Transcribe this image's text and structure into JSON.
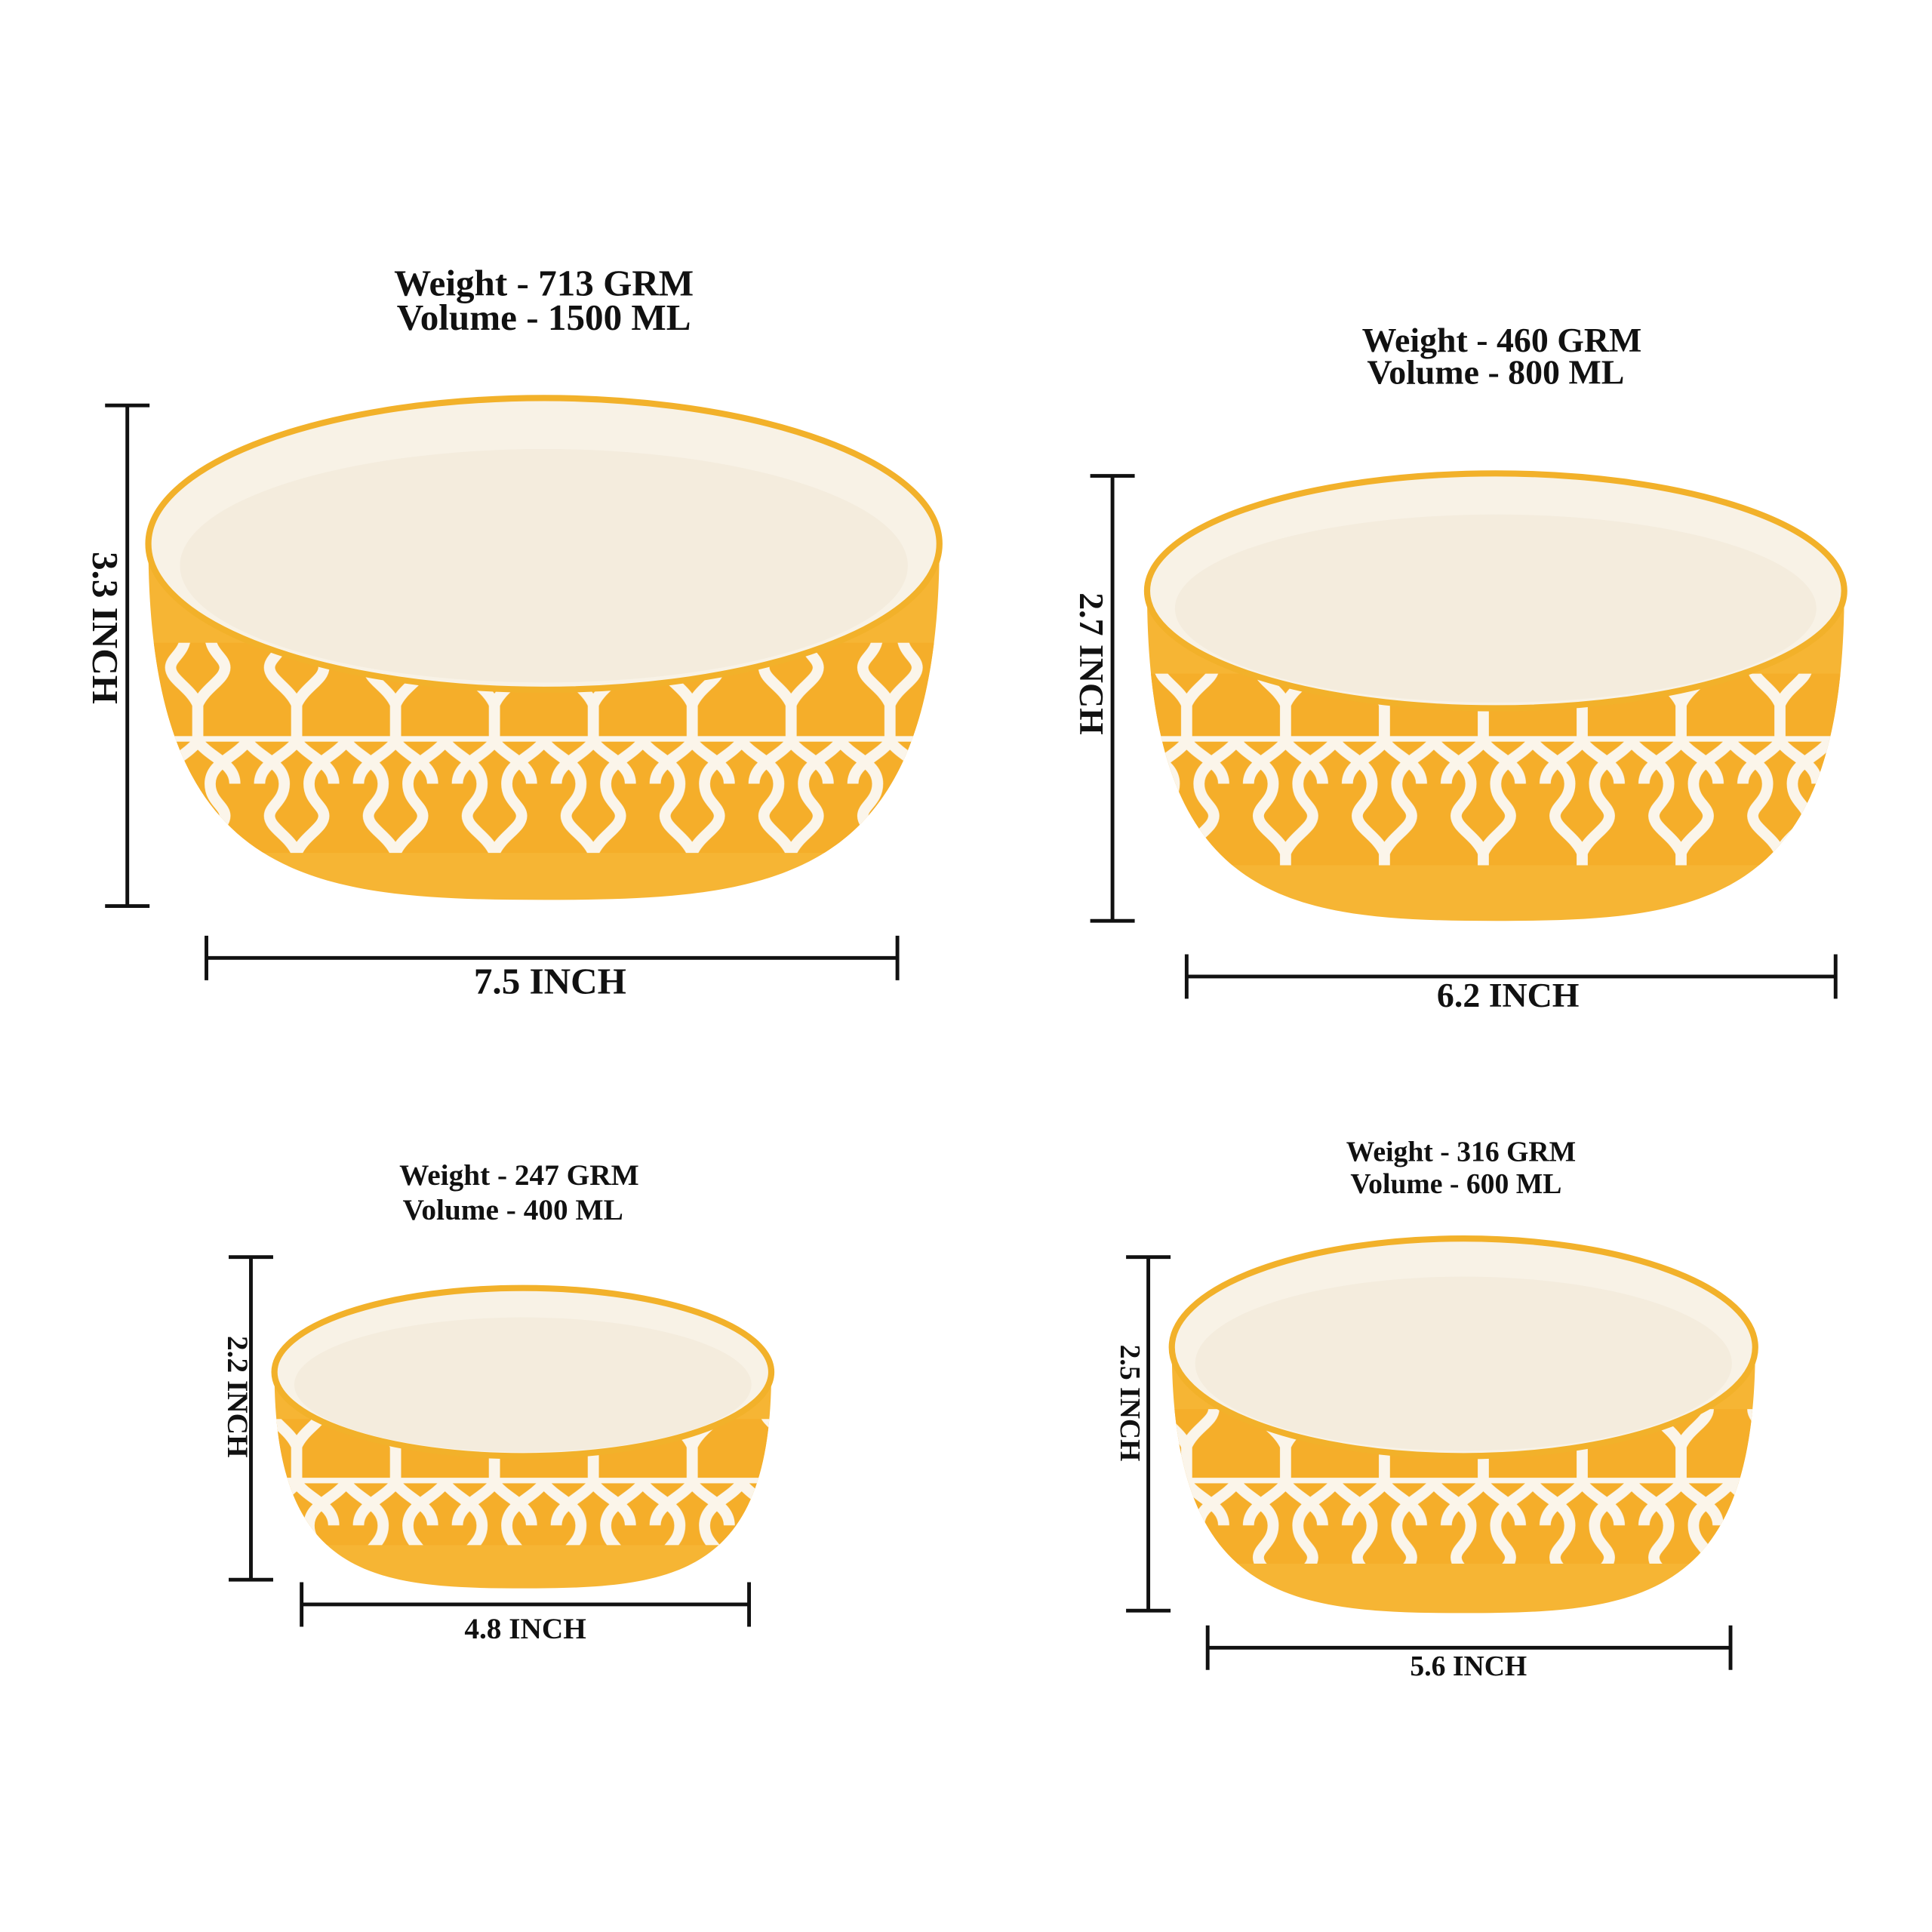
{
  "products": [
    {
      "weight": "Weight - 713 GRM",
      "volume": "Volume - 1500 ML",
      "height": "3.3 INCH",
      "width": "7.5 INCH"
    },
    {
      "weight": "Weight - 460 GRM",
      "volume": "Volume - 800 ML",
      "height": "2.7 INCH",
      "width": "6.2 INCH"
    },
    {
      "weight": "Weight - 247 GRM",
      "volume": "Volume - 400 ML",
      "height": "2.2 INCH",
      "width": "4.8 INCH"
    },
    {
      "weight": "Weight - 316 GRM",
      "volume": "Volume - 600 ML",
      "height": "2.5 INCH",
      "width": "5.6 INCH"
    }
  ]
}
